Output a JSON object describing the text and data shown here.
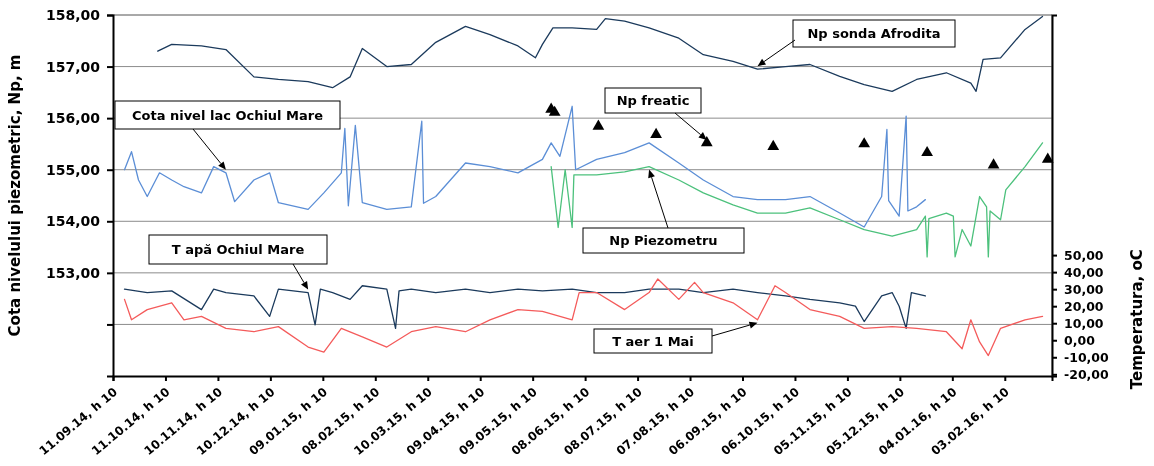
{
  "chart_data": {
    "type": "line",
    "ylabel": "Cota nivelului piezometric, Np, m",
    "y2label": "Temperatura, oC",
    "xlim": [
      "2014-09-11T10:00",
      "2016-03-01T10:00"
    ],
    "xticks": [
      {
        "value": "2014-09-11T10:00",
        "label": "11.09.14, h 10"
      },
      {
        "value": "2014-10-11T10:00",
        "label": "11.10.14, h 10"
      },
      {
        "value": "2014-11-10T10:00",
        "label": "10.11.14, h 10"
      },
      {
        "value": "2014-12-10T10:00",
        "label": "10.12.14, h 10"
      },
      {
        "value": "2015-01-09T10:00",
        "label": "09.01.15, h 10"
      },
      {
        "value": "2015-02-08T10:00",
        "label": "08.02.15, h 10"
      },
      {
        "value": "2015-03-10T10:00",
        "label": "10.03.15, h 10"
      },
      {
        "value": "2015-04-09T10:00",
        "label": "09.04.15, h 10"
      },
      {
        "value": "2015-05-09T10:00",
        "label": "09.05.15, h 10"
      },
      {
        "value": "2015-06-08T10:00",
        "label": "08.06.15, h 10"
      },
      {
        "value": "2015-07-08T10:00",
        "label": "08.07.15, h 10"
      },
      {
        "value": "2015-08-07T10:00",
        "label": "07.08.15, h 10"
      },
      {
        "value": "2015-09-06T10:00",
        "label": "06.09.15, h 10"
      },
      {
        "value": "2015-10-06T10:00",
        "label": "06.10.15, h 10"
      },
      {
        "value": "2015-11-05T10:00",
        "label": "05.11.15, h 10"
      },
      {
        "value": "2015-12-05T10:00",
        "label": "05.12.15, h 10"
      },
      {
        "value": "2016-01-04T10:00",
        "label": "04.01.16, h 10"
      },
      {
        "value": "2016-02-03T10:00",
        "label": "03.02.16, h 10"
      }
    ],
    "ylim": [
      151,
      158
    ],
    "yticks": [
      {
        "value": 152,
        "label": null
      },
      {
        "value": 153,
        "label": "153,00"
      },
      {
        "value": 154,
        "label": "154,00"
      },
      {
        "value": 155,
        "label": "155,00"
      },
      {
        "value": 156,
        "label": "156,00"
      },
      {
        "value": 157,
        "label": "157,00"
      },
      {
        "value": 158,
        "label": "158,00"
      }
    ],
    "y2lim": [
      -21,
      191
    ],
    "y2ticks": [
      {
        "value": -20,
        "label": "-20,00"
      },
      {
        "value": -10,
        "label": "-10,00"
      },
      {
        "value": 0,
        "label": "0,00"
      },
      {
        "value": 10,
        "label": "10,00"
      },
      {
        "value": 20,
        "label": "20,00"
      },
      {
        "value": 30,
        "label": "30,00"
      },
      {
        "value": 40,
        "label": "40,00"
      },
      {
        "value": 50,
        "label": "50,00"
      }
    ],
    "grid": "y",
    "legend": false,
    "marker": "none",
    "series": [
      {
        "name": "Np sonda Afrodita",
        "color": "#1b3a5c",
        "x": [
          "2014-10-07",
          "2014-10-15",
          "2014-11-01",
          "2014-11-15",
          "2014-12-01",
          "2014-12-15",
          "2015-01-01",
          "2015-01-15",
          "2015-01-25",
          "2015-02-01",
          "2015-02-15",
          "2015-03-01",
          "2015-03-15",
          "2015-04-01",
          "2015-04-15",
          "2015-05-01",
          "2015-05-11",
          "2015-05-15",
          "2015-05-21",
          "2015-06-01",
          "2015-06-15",
          "2015-06-20",
          "2015-07-01",
          "2015-07-15",
          "2015-08-01",
          "2015-08-15",
          "2015-09-01",
          "2015-09-15",
          "2015-10-01",
          "2015-10-15",
          "2015-11-01",
          "2015-11-15",
          "2015-12-01",
          "2015-12-15",
          "2016-01-01",
          "2016-01-15",
          "2016-01-18",
          "2016-01-22",
          "2016-02-01",
          "2016-02-15",
          "2016-02-25"
        ],
        "values": [
          157.3,
          157.43,
          157.4,
          157.33,
          156.8,
          156.75,
          156.71,
          156.59,
          156.8,
          157.35,
          157.0,
          157.04,
          157.47,
          157.78,
          157.62,
          157.4,
          157.17,
          157.43,
          157.75,
          157.75,
          157.72,
          157.93,
          157.88,
          157.75,
          157.55,
          157.23,
          157.1,
          156.95,
          157.0,
          157.04,
          156.81,
          156.65,
          156.52,
          156.75,
          156.88,
          156.68,
          156.52,
          157.14,
          157.17,
          157.72,
          157.97
        ]
      },
      {
        "name": "Cota nivel lac Ochiul Mare",
        "color": "#5b8ed6",
        "x": [
          "2014-09-18",
          "2014-09-22",
          "2014-09-26",
          "2014-10-01",
          "2014-10-08",
          "2014-10-15",
          "2014-10-22",
          "2014-11-01",
          "2014-11-08",
          "2014-11-15",
          "2014-11-20",
          "2014-12-01",
          "2014-12-10",
          "2014-12-15",
          "2015-01-01",
          "2015-01-10",
          "2015-01-20",
          "2015-01-22",
          "2015-01-24",
          "2015-01-28",
          "2015-02-01",
          "2015-02-15",
          "2015-03-01",
          "2015-03-07",
          "2015-03-08",
          "2015-03-15",
          "2015-04-01",
          "2015-04-15",
          "2015-05-01",
          "2015-05-15",
          "2015-05-20",
          "2015-05-25",
          "2015-06-01",
          "2015-06-03",
          "2015-06-15",
          "2015-07-01",
          "2015-07-15",
          "2015-08-01",
          "2015-08-15",
          "2015-09-01",
          "2015-09-15",
          "2015-10-01",
          "2015-10-15",
          "2015-11-01",
          "2015-11-15",
          "2015-11-25",
          "2015-11-28",
          "2015-11-29",
          "2015-12-05",
          "2015-12-09",
          "2015-12-10",
          "2015-12-15",
          "2015-12-20"
        ],
        "values": [
          155.0,
          155.35,
          154.8,
          154.48,
          154.94,
          154.8,
          154.67,
          154.55,
          155.06,
          154.94,
          154.38,
          154.8,
          154.94,
          154.36,
          154.23,
          154.55,
          154.94,
          155.8,
          154.3,
          155.86,
          154.36,
          154.23,
          154.28,
          155.94,
          154.35,
          154.48,
          155.13,
          155.06,
          154.94,
          155.2,
          155.52,
          155.26,
          156.23,
          155.0,
          155.2,
          155.33,
          155.52,
          155.13,
          154.8,
          154.48,
          154.42,
          154.42,
          154.48,
          154.16,
          153.89,
          154.48,
          155.78,
          154.4,
          154.1,
          156.04,
          154.2,
          154.28,
          154.42
        ]
      },
      {
        "name": "Np Piezometru",
        "color": "#4cc17c",
        "x": [
          "2015-05-20",
          "2015-05-24",
          "2015-05-28",
          "2015-06-01",
          "2015-06-02",
          "2015-06-15",
          "2015-07-01",
          "2015-07-15",
          "2015-08-01",
          "2015-08-15",
          "2015-09-01",
          "2015-09-15",
          "2015-10-01",
          "2015-10-15",
          "2015-11-01",
          "2015-11-15",
          "2015-12-01",
          "2015-12-15",
          "2015-12-20",
          "2015-12-21",
          "2015-12-22",
          "2016-01-01",
          "2016-01-05",
          "2016-01-06",
          "2016-01-10",
          "2016-01-15",
          "2016-01-20",
          "2016-01-24",
          "2016-01-25",
          "2016-01-26",
          "2016-02-01",
          "2016-02-04",
          "2016-02-15",
          "2016-02-25"
        ],
        "values": [
          155.06,
          153.88,
          155.0,
          153.88,
          154.9,
          154.9,
          154.96,
          155.06,
          154.8,
          154.55,
          154.32,
          154.16,
          154.16,
          154.26,
          154.03,
          153.84,
          153.71,
          153.84,
          154.1,
          153.31,
          154.05,
          154.16,
          154.1,
          153.31,
          153.84,
          153.52,
          154.48,
          154.28,
          153.31,
          154.2,
          154.03,
          154.61,
          155.06,
          155.52
        ]
      },
      {
        "name": "Np freatic",
        "type": "scatter",
        "marker": "triangle",
        "color": "#000000",
        "x": [
          "2015-05-20",
          "2015-05-22",
          "2015-06-16",
          "2015-07-19",
          "2015-08-17",
          "2015-09-24",
          "2015-11-15",
          "2015-12-21",
          "2016-01-28",
          "2016-02-28"
        ],
        "values": [
          156.17,
          156.11,
          155.84,
          155.68,
          155.52,
          155.45,
          155.5,
          155.33,
          155.09,
          155.2
        ]
      },
      {
        "name": "T apă Ochiul Mare",
        "axis": "y2",
        "color": "#1b3a5c",
        "x": [
          "2014-09-18",
          "2014-10-01",
          "2014-10-15",
          "2014-11-01",
          "2014-11-08",
          "2014-11-15",
          "2014-12-01",
          "2014-12-10",
          "2014-12-15",
          "2015-01-01",
          "2015-01-05",
          "2015-01-08",
          "2015-01-15",
          "2015-01-25",
          "2015-02-01",
          "2015-02-15",
          "2015-02-20",
          "2015-02-22",
          "2015-03-01",
          "2015-03-15",
          "2015-04-01",
          "2015-04-15",
          "2015-05-01",
          "2015-05-15",
          "2015-06-01",
          "2015-06-15",
          "2015-07-01",
          "2015-07-15",
          "2015-08-01",
          "2015-08-15",
          "2015-09-01",
          "2015-09-15",
          "2015-10-01",
          "2015-10-15",
          "2015-11-01",
          "2015-11-10",
          "2015-11-15",
          "2015-11-25",
          "2015-12-01",
          "2015-12-05",
          "2015-12-09",
          "2015-12-12",
          "2015-12-20"
        ],
        "values": [
          30,
          28,
          29,
          18,
          30,
          28,
          26,
          14,
          30,
          28,
          9,
          30,
          28,
          24,
          32,
          30,
          7,
          29,
          30,
          28,
          30,
          28,
          30,
          29,
          30,
          28,
          28,
          30,
          30,
          28,
          30,
          28,
          26,
          24,
          22,
          20,
          11,
          26,
          28,
          20,
          7,
          28,
          26
        ]
      },
      {
        "name": "T aer 1 Mai",
        "axis": "y2",
        "color": "#f45b5b",
        "x": [
          "2014-09-18",
          "2014-09-22",
          "2014-10-01",
          "2014-10-15",
          "2014-10-22",
          "2014-11-01",
          "2014-11-15",
          "2014-12-01",
          "2014-12-15",
          "2015-01-01",
          "2015-01-10",
          "2015-01-20",
          "2015-02-01",
          "2015-02-15",
          "2015-03-01",
          "2015-03-15",
          "2015-04-01",
          "2015-04-15",
          "2015-05-01",
          "2015-05-15",
          "2015-06-01",
          "2015-06-05",
          "2015-06-15",
          "2015-07-01",
          "2015-07-15",
          "2015-07-20",
          "2015-08-01",
          "2015-08-10",
          "2015-08-15",
          "2015-09-01",
          "2015-09-15",
          "2015-09-25",
          "2015-10-01",
          "2015-10-15",
          "2015-11-01",
          "2015-11-15",
          "2015-12-01",
          "2015-12-15",
          "2016-01-01",
          "2016-01-10",
          "2016-01-15",
          "2016-01-20",
          "2016-01-25",
          "2016-02-01",
          "2016-02-15",
          "2016-02-25"
        ],
        "values": [
          24,
          12,
          18,
          22,
          12,
          14,
          7,
          5,
          8,
          -4,
          -7,
          7,
          2,
          -4,
          5,
          8,
          5,
          12,
          18,
          17,
          12,
          28,
          28,
          18,
          28,
          36,
          24,
          34,
          28,
          22,
          12,
          32,
          28,
          18,
          14,
          7,
          8,
          7,
          5,
          -5,
          12,
          -1,
          -9,
          7,
          12,
          14
        ]
      }
    ]
  }
}
